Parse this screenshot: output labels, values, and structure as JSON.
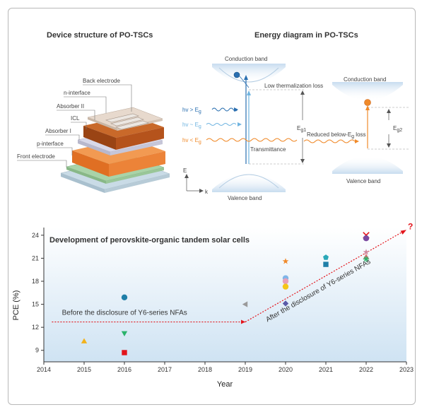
{
  "device": {
    "title": "Device structure of PO-TSCs",
    "layers": [
      "Back electrode",
      "n-interface",
      "Absorber II",
      "ICL",
      "Absorber I",
      "p-interface",
      "Front electrode"
    ]
  },
  "energy": {
    "title": "Energy diagram in PO-TSCs",
    "cb_left": "Conduction band",
    "vb_left": "Valence band",
    "cb_right": "Conduction band",
    "vb_right": "Valence band",
    "low_therm": "Low thermalization loss",
    "reduced": "Reduced below-E",
    "reduced_sub": "g",
    "reduced_tail": " loss",
    "transmittance": "Transmittance",
    "eg1": "E",
    "eg1_sub": "g1",
    "eg2": "E",
    "eg2_sub": "g2",
    "hv_gt": "hv > E",
    "hv_eq": "hv ~ E",
    "hv_lt": "hv < E",
    "hv_sub": "g",
    "axis_e": "E",
    "axis_k": "k",
    "colors": {
      "blue_dark": "#2a6fb0",
      "blue_light": "#6fb4e0",
      "orange": "#f08a2a"
    }
  },
  "chart_data": {
    "type": "scatter",
    "title": "Development of perovskite-organic tandem solar cells",
    "xlabel": "Year",
    "ylabel": "PCE (%)",
    "xlim": [
      2014,
      2023
    ],
    "ylim": [
      7.5,
      25
    ],
    "xticks": [
      2014,
      2015,
      2016,
      2017,
      2018,
      2019,
      2020,
      2021,
      2022,
      2023
    ],
    "yticks": [
      9,
      12,
      15,
      18,
      21,
      24
    ],
    "points": [
      {
        "x": 2015,
        "y": 10.2,
        "marker": "triangle-up",
        "color": "#f2b21b"
      },
      {
        "x": 2016,
        "y": 15.9,
        "marker": "circle",
        "color": "#1f7fa8"
      },
      {
        "x": 2016,
        "y": 11.2,
        "marker": "triangle-down",
        "color": "#2bb36b"
      },
      {
        "x": 2016,
        "y": 8.7,
        "marker": "square",
        "color": "#e3141b"
      },
      {
        "x": 2019,
        "y": 15.0,
        "marker": "triangle-left",
        "color": "#9a9a9a"
      },
      {
        "x": 2020,
        "y": 20.6,
        "marker": "star",
        "color": "#f08a2a"
      },
      {
        "x": 2020,
        "y": 18.4,
        "marker": "circle",
        "color": "#7fb5e8"
      },
      {
        "x": 2020,
        "y": 18.0,
        "marker": "circle",
        "color": "#e8a0b8"
      },
      {
        "x": 2020,
        "y": 17.3,
        "marker": "circle",
        "color": "#f5c518"
      },
      {
        "x": 2020,
        "y": 15.1,
        "marker": "diamond",
        "color": "#5a5aa8"
      },
      {
        "x": 2021,
        "y": 21.1,
        "marker": "pentagon",
        "color": "#2aa8b8"
      },
      {
        "x": 2021,
        "y": 20.2,
        "marker": "square",
        "color": "#1f7fa8"
      },
      {
        "x": 2022,
        "y": 24.0,
        "marker": "x",
        "color": "#e3141b"
      },
      {
        "x": 2022,
        "y": 23.6,
        "marker": "circle",
        "color": "#7a4aa0"
      },
      {
        "x": 2022,
        "y": 21.8,
        "marker": "star",
        "color": "#d08aa0"
      },
      {
        "x": 2022,
        "y": 21.2,
        "marker": "triangle-up",
        "color": "#e07070"
      },
      {
        "x": 2022,
        "y": 20.9,
        "marker": "asterisk",
        "color": "#2bb36b"
      }
    ],
    "annotations": {
      "before": "Before the disclosure of Y6-series NFAs",
      "after": "After the disclosure of Y6-series NFAs",
      "question": "?"
    },
    "trend_before": [
      [
        2014.2,
        12.7
      ],
      [
        2019,
        12.7
      ]
    ],
    "trend_after": [
      [
        2019,
        12.7
      ],
      [
        2023,
        24.7
      ]
    ]
  }
}
